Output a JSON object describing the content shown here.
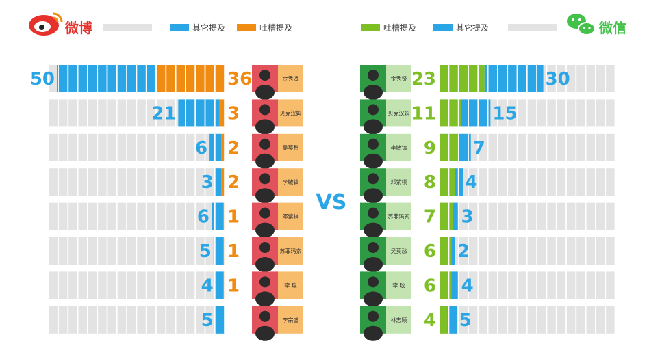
{
  "colors": {
    "blue": "#2aa5e6",
    "orange": "#f08c12",
    "green": "#7fbf26",
    "track": "#e3e3e3",
    "weibo_red": "#e5322d",
    "weixin_green": "#43c24a",
    "vs": "#2aa5e6",
    "name_bg_left": "#f7bd6c",
    "name_bg_right": "#c3e4b0",
    "photo_bg_left": "#e2525c",
    "photo_bg_right": "#2e9a43"
  },
  "header": {
    "left": {
      "brand": "微博",
      "legend": [
        {
          "label": "其它提及",
          "color": "blue"
        },
        {
          "label": "吐槽提及",
          "color": "orange"
        }
      ]
    },
    "right": {
      "brand": "微信",
      "legend": [
        {
          "label": "吐槽提及",
          "color": "green"
        },
        {
          "label": "其它提及",
          "color": "blue"
        }
      ]
    }
  },
  "vs_label": "VS",
  "chart_data": [
    {
      "type": "bar",
      "panel": "微博",
      "stacked": true,
      "categories": [
        "金秀贤",
        "贝克汉姆",
        "吴莫愁",
        "李敏镐",
        "邓紫棋",
        "苏菲玛索",
        "李 玟",
        "李宗盛"
      ],
      "series": [
        {
          "name": "其它提及",
          "values": [
            50,
            21,
            6,
            3,
            6,
            5,
            4,
            5
          ]
        },
        {
          "name": "吐槽提及",
          "values": [
            36,
            3,
            2,
            2,
            1,
            1,
            1,
            null
          ]
        }
      ]
    },
    {
      "type": "bar",
      "panel": "微信",
      "stacked": true,
      "categories": [
        "金秀贤",
        "贝克汉姆",
        "李敏镐",
        "邓紫棋",
        "苏菲玛索",
        "吴莫愁",
        "李 玟",
        "林志颖"
      ],
      "series": [
        {
          "name": "吐槽提及",
          "values": [
            23,
            11,
            9,
            8,
            7,
            6,
            6,
            4
          ]
        },
        {
          "name": "其它提及",
          "values": [
            30,
            15,
            7,
            4,
            3,
            2,
            4,
            5
          ]
        }
      ]
    }
  ]
}
